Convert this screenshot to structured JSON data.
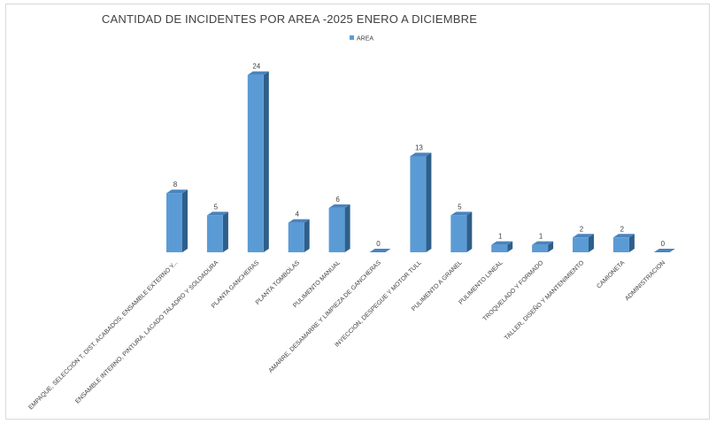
{
  "chart_data": {
    "type": "bar",
    "title": "CANTIDAD DE INCIDENTES POR AREA -2025 ENERO A DICIEMBRE",
    "legend": {
      "position": "top",
      "entries": [
        "AREA"
      ]
    },
    "categories": [
      "EMPAQUE, SELECCIÓN T, DIST. ACABADOS, ENSAMBLE EXTERNO Y...",
      "ENSAMBLE INTERNO, PINTURA, LACADO TALADRO Y SOLDADURA",
      "PLANTA GANCHERAS",
      "PLANTA TOMBOLAS",
      "PULIMENTO MANUAL",
      "AMARRE, DESAMARRE Y LIMPIEZA DE GANCHERAS",
      "INYECCION, DESPEGUE Y MOTOR TULL",
      "PULIMENTO A GRANEL",
      "PULIMENTO LINEAL",
      "TROQUELADO Y FORMADO",
      "TALLER, DISEÑO Y MANTENIMIENTO",
      "CAMIONETA",
      "ADMINISTRACION"
    ],
    "series": [
      {
        "name": "AREA",
        "values": [
          8,
          5,
          24,
          4,
          6,
          0,
          13,
          5,
          1,
          1,
          2,
          2,
          0
        ]
      }
    ],
    "value_labels": [
      "8",
      "5",
      "24",
      "4",
      "6",
      "0",
      "13",
      "5",
      "1",
      "1",
      "2",
      "2",
      "0"
    ],
    "ylim": [
      0,
      24
    ],
    "grid": false,
    "style": "3d-column",
    "colors": {
      "front": "#5b9bd5",
      "side": "#2e5f8a",
      "top": "#4a84bc"
    }
  }
}
